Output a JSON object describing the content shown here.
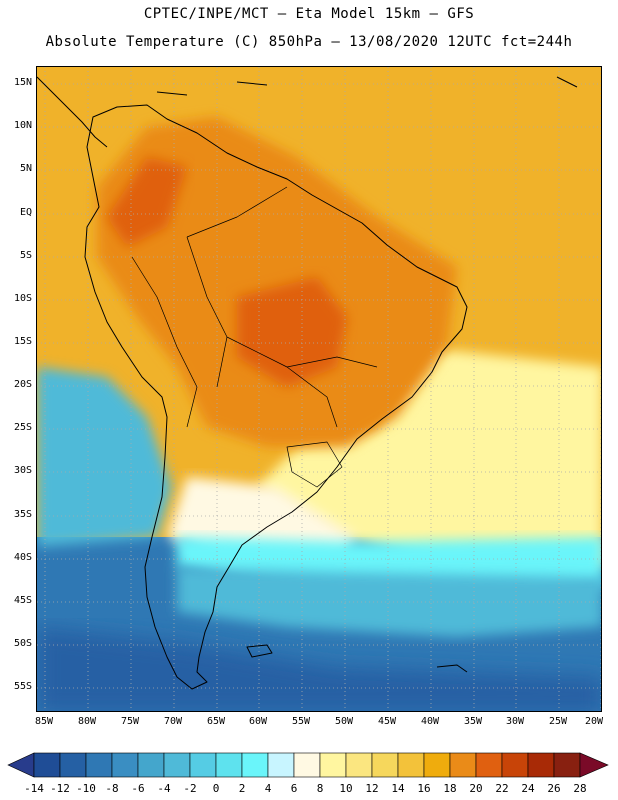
{
  "header": {
    "line1": "CPTEC/INPE/MCT –  Eta Model 15km – GFS",
    "line2": "Absolute Temperature (C) 850hPa – 13/08/2020 12UTC fct=244h"
  },
  "map": {
    "lat_labels": [
      "15N",
      "10N",
      "5N",
      "EQ",
      "5S",
      "10S",
      "15S",
      "20S",
      "25S",
      "30S",
      "35S",
      "40S",
      "45S",
      "50S",
      "55S"
    ],
    "lon_labels": [
      "85W",
      "80W",
      "75W",
      "70W",
      "65W",
      "60W",
      "55W",
      "50W",
      "45W",
      "40W",
      "35W",
      "30W",
      "25W",
      "20W"
    ],
    "gridline_color": "#aaaaaa",
    "coastline_color": "#000000"
  },
  "colorbar": {
    "ticks": [
      "-14",
      "-12",
      "-10",
      "-8",
      "-6",
      "-4",
      "-2",
      "0",
      "2",
      "4",
      "6",
      "8",
      "10",
      "12",
      "14",
      "16",
      "18",
      "20",
      "22",
      "24",
      "26",
      "28"
    ],
    "under_color": "#283c8c",
    "over_color": "#7a0a28",
    "colors": [
      "#1f4d96",
      "#2560a4",
      "#2f78b4",
      "#3a8ec2",
      "#44a6cc",
      "#4fbad8",
      "#55cce4",
      "#5ee2ee",
      "#6af5fa",
      "#c8f5ff",
      "#fff9e3",
      "#fff6a0",
      "#fbe680",
      "#f6d75c",
      "#f3c23a",
      "#efac0d",
      "#ea8b18",
      "#e06010",
      "#c84408",
      "#a82a06",
      "#882010"
    ]
  },
  "fields": {
    "warm_ocean": "#f0b22a",
    "warm_land": "#ea8b18",
    "hot_land": "#e06010",
    "cool_ocean": "#4fbad8",
    "cold_ocean": "#2f78b4",
    "colder_ocean": "#2560a4",
    "mild_band": "#fff6a0",
    "pale_band": "#fff9e3",
    "light_cyan": "#6af5fa"
  }
}
